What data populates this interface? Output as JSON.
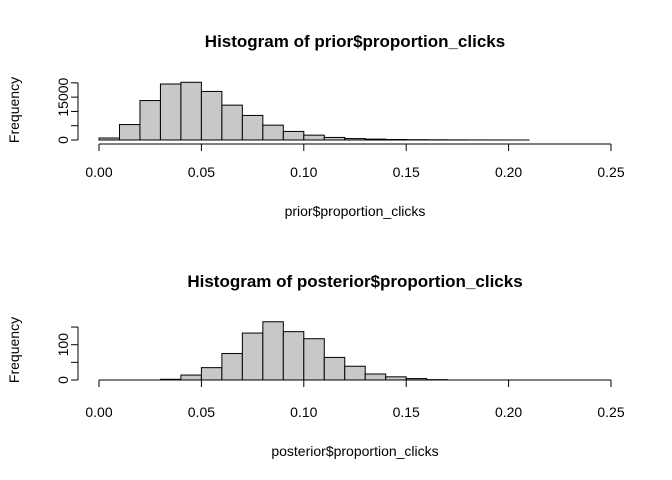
{
  "chart_data": [
    {
      "type": "bar",
      "title": "Histogram of prior$proportion_clicks",
      "xlabel": "prior$proportion_clicks",
      "ylabel": "Frequency",
      "xlim": [
        0,
        0.25
      ],
      "ylim": [
        0,
        21000
      ],
      "x_ticks": [
        "0.00",
        "0.05",
        "0.10",
        "0.15",
        "0.20",
        "0.25"
      ],
      "y_ticks": [
        0,
        5000,
        10000,
        15000,
        20000
      ],
      "y_tick_labels": [
        "0",
        "",
        "",
        "15000",
        ""
      ],
      "bin_start": 0,
      "bin_width": 0.01,
      "values": [
        700,
        5400,
        13800,
        19600,
        20200,
        17000,
        12200,
        8600,
        5200,
        3000,
        1700,
        900,
        500,
        300,
        180,
        110,
        70,
        40,
        20,
        10,
        5
      ]
    },
    {
      "type": "bar",
      "title": "Histogram of posterior$proportion_clicks",
      "xlabel": "posterior$proportion_clicks",
      "ylabel": "Frequency",
      "xlim": [
        0,
        0.25
      ],
      "ylim": [
        0,
        170
      ],
      "x_ticks": [
        "0.00",
        "0.05",
        "0.10",
        "0.15",
        "0.20",
        "0.25"
      ],
      "y_ticks": [
        0,
        50,
        100,
        150
      ],
      "y_tick_labels": [
        "0",
        "",
        "100",
        ""
      ],
      "bin_start": 0.03,
      "bin_width": 0.01,
      "values": [
        2,
        14,
        35,
        75,
        133,
        165,
        137,
        117,
        64,
        39,
        17,
        9,
        4,
        1
      ]
    }
  ]
}
